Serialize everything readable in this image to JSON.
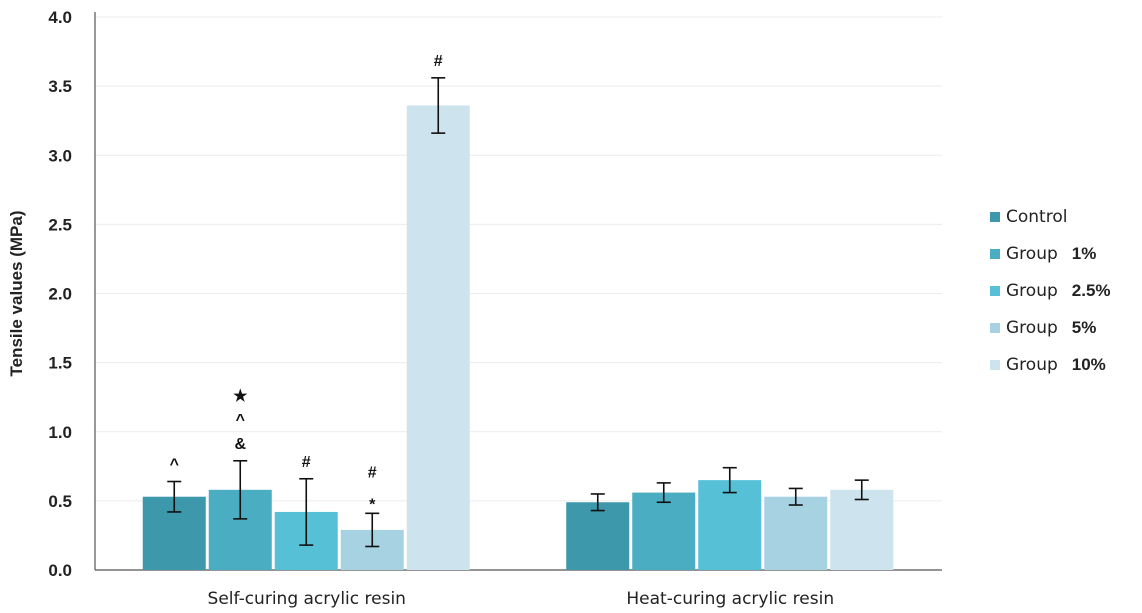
{
  "chart_data": {
    "type": "bar",
    "ylabel": "Tensile values (MPa)",
    "xlabel": "",
    "ylim": [
      0,
      4.0
    ],
    "yticks": [
      "0.0",
      "0.5",
      "1.0",
      "1.5",
      "2.0",
      "2.5",
      "3.0",
      "3.5",
      "4.0"
    ],
    "grid": true,
    "legend_position": "right",
    "categories": [
      "Self-curing acrylic resin",
      "Heat-curing acrylic resin"
    ],
    "series": [
      {
        "name": "Control",
        "color": "#3e98ab",
        "values": [
          0.53,
          0.49
        ],
        "errors": [
          0.11,
          0.06
        ]
      },
      {
        "name": "1%",
        "color": "#4aadc2",
        "values": [
          0.58,
          0.56
        ],
        "errors": [
          0.21,
          0.07
        ]
      },
      {
        "name": "2.5%",
        "color": "#56c0d6",
        "values": [
          0.42,
          0.65
        ],
        "errors": [
          0.24,
          0.09
        ]
      },
      {
        "name": "5%",
        "color": "#a6d2e2",
        "values": [
          0.29,
          0.53
        ],
        "errors": [
          0.12,
          0.06
        ]
      },
      {
        "name": "10%",
        "color": "#cde3ed",
        "values": [
          3.36,
          0.58
        ],
        "errors": [
          0.2,
          0.07
        ]
      }
    ],
    "annotations": [
      {
        "category": 0,
        "series": 0,
        "labels": [
          "^"
        ]
      },
      {
        "category": 0,
        "series": 1,
        "labels": [
          "★",
          "^",
          "&"
        ]
      },
      {
        "category": 0,
        "series": 2,
        "labels": [
          "#"
        ]
      },
      {
        "category": 0,
        "series": 3,
        "labels": [
          "#",
          "*"
        ]
      },
      {
        "category": 0,
        "series": 4,
        "labels": [
          "#"
        ]
      }
    ]
  },
  "legend": {
    "items": [
      {
        "group": "Control",
        "pct": "",
        "color": "#3e98ab"
      },
      {
        "group": "Group",
        "pct": "1%",
        "color": "#4aadc2"
      },
      {
        "group": "Group",
        "pct": "2.5%",
        "color": "#56c0d6"
      },
      {
        "group": "Group",
        "pct": "5%",
        "color": "#a6d2e2"
      },
      {
        "group": "Group",
        "pct": "10%",
        "color": "#cde3ed"
      }
    ]
  }
}
